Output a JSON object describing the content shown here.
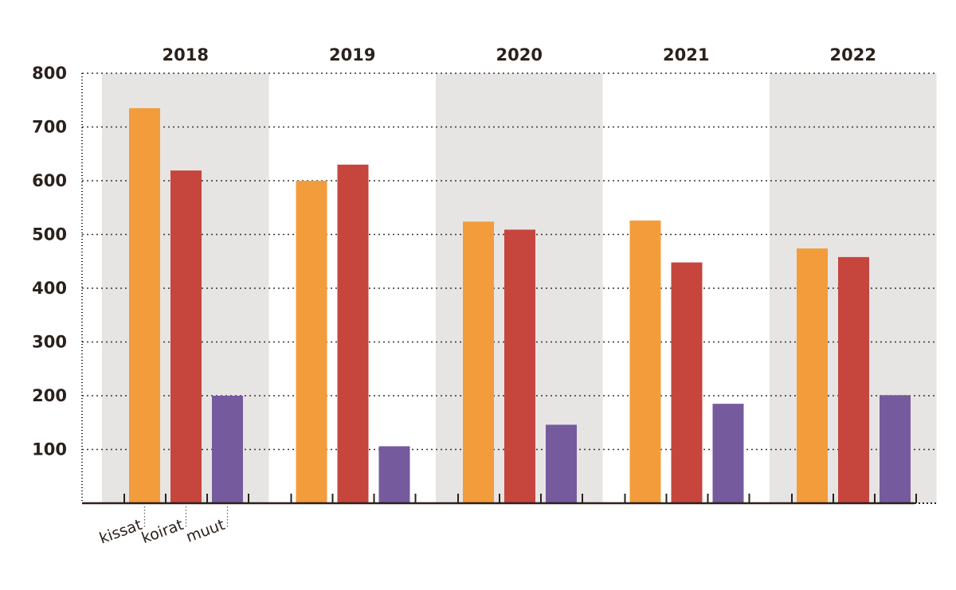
{
  "chart_data": {
    "type": "bar",
    "title": "",
    "xlabel": "",
    "ylabel": "",
    "categories": [
      "2018",
      "2019",
      "2020",
      "2021",
      "2022"
    ],
    "ylim": [
      0,
      800
    ],
    "yticks": [
      "100",
      "200",
      "300",
      "400",
      "500",
      "600",
      "700",
      "800"
    ],
    "grid": "horizontal dotted",
    "legend": "labels under first year group",
    "series": [
      {
        "name": "kissat",
        "color": "#f39c3c",
        "values": [
          735,
          600,
          524,
          526,
          474
        ]
      },
      {
        "name": "koirat",
        "color": "#c6453d",
        "values": [
          619,
          630,
          509,
          448,
          458
        ]
      },
      {
        "name": "muut",
        "color": "#765a9e",
        "values": [
          200,
          106,
          146,
          185,
          201
        ]
      }
    ],
    "band_color": "#e6e5e4",
    "axis_color": "#2b211c"
  }
}
